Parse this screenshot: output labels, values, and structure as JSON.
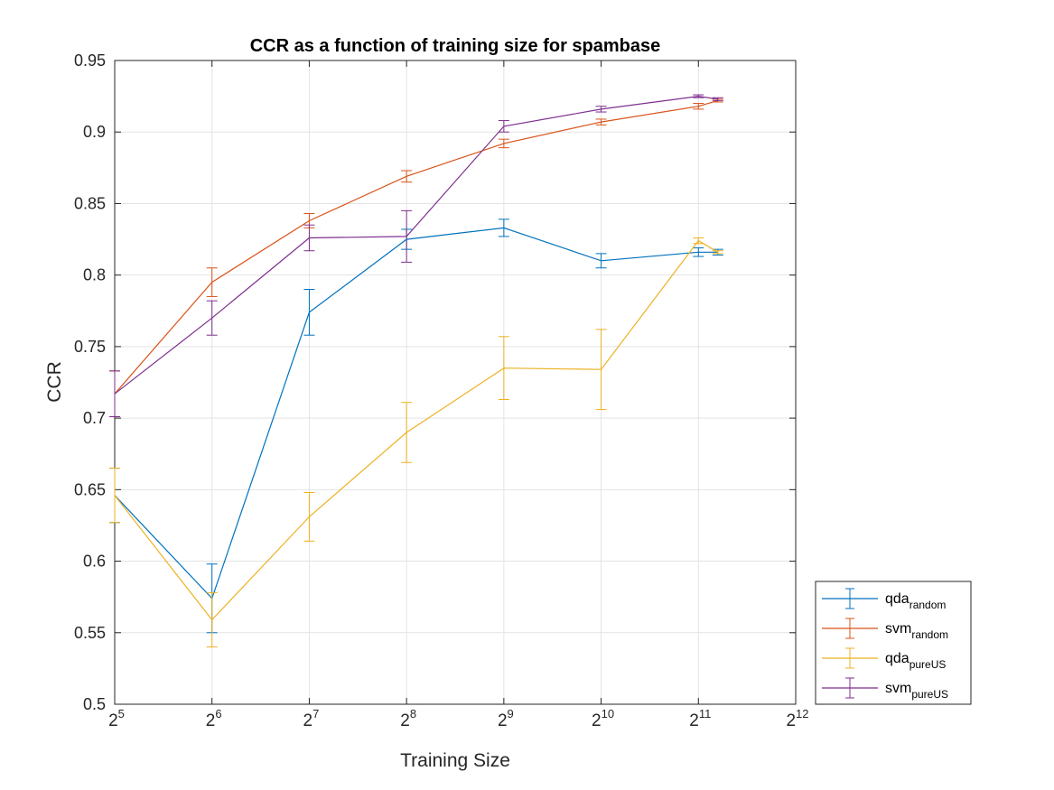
{
  "chart_data": {
    "type": "line",
    "title": "CCR as a function of training size for spambase",
    "xlabel": "Training Size",
    "ylabel": "CCR",
    "xscale": "log2",
    "xlim": [
      5,
      12
    ],
    "ylim": [
      0.5,
      0.95
    ],
    "grid": true,
    "legend_position": "bottom-right-outside",
    "x_tick_base": "2",
    "x_tick_exponents": [
      "5",
      "6",
      "7",
      "8",
      "9",
      "10",
      "11",
      "12"
    ],
    "y_ticks": [
      "0.5",
      "0.55",
      "0.6",
      "0.65",
      "0.7",
      "0.75",
      "0.8",
      "0.85",
      "0.9",
      "0.95"
    ],
    "series": [
      {
        "name": "qda",
        "subscript": "random",
        "color": "#0072BD",
        "x": [
          5,
          6,
          7,
          8,
          9,
          10,
          11,
          11.2
        ],
        "y": [
          0.646,
          0.574,
          0.774,
          0.825,
          0.833,
          0.81,
          0.816,
          0.816
        ],
        "err": [
          0.019,
          0.024,
          0.016,
          0.007,
          0.006,
          0.005,
          0.003,
          0.002
        ]
      },
      {
        "name": "svm",
        "subscript": "random",
        "color": "#D95319",
        "x": [
          5,
          6,
          7,
          8,
          9,
          10,
          11,
          11.2
        ],
        "y": [
          0.717,
          0.795,
          0.838,
          0.869,
          0.892,
          0.907,
          0.918,
          0.922
        ],
        "err": [
          0.016,
          0.01,
          0.005,
          0.004,
          0.003,
          0.002,
          0.002,
          0.001
        ]
      },
      {
        "name": "qda",
        "subscript": "pureUS",
        "color": "#EDB120",
        "x": [
          5,
          6,
          7,
          8,
          9,
          10,
          11,
          11.2
        ],
        "y": [
          0.646,
          0.559,
          0.631,
          0.69,
          0.735,
          0.734,
          0.824,
          0.816
        ],
        "err": [
          0.019,
          0.019,
          0.017,
          0.021,
          0.022,
          0.028,
          0.002,
          0.001
        ]
      },
      {
        "name": "svm",
        "subscript": "pureUS",
        "color": "#7E2F8E",
        "x": [
          5,
          6,
          7,
          8,
          9,
          10,
          11,
          11.2
        ],
        "y": [
          0.717,
          0.77,
          0.826,
          0.827,
          0.904,
          0.916,
          0.925,
          0.923
        ],
        "err": [
          0.016,
          0.012,
          0.009,
          0.018,
          0.004,
          0.002,
          0.001,
          0.001
        ]
      }
    ]
  }
}
